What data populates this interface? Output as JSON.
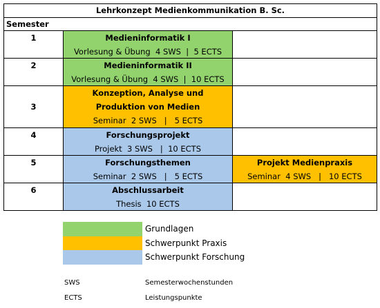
{
  "table": {
    "title": "Lehrkonzept Medienkommunikation B. Sc.",
    "header": "Semester",
    "rows": [
      {
        "semester": "1",
        "module": {
          "title": "Medieninformatik I",
          "detail": "Vorlesung & Übung  4 SWS  |  5 ECTS"
        }
      },
      {
        "semester": "2",
        "module": {
          "title": "Medieninformatik II",
          "detail": "Vorlesung & Übung  4 SWS  |  10 ECTS"
        }
      },
      {
        "semester": "3",
        "module": {
          "title": "Konzeption, Analyse und Produktion von Medien",
          "detail": "Seminar  2 SWS   |   5 ECTS"
        }
      },
      {
        "semester": "4",
        "module": {
          "title": "Forschungsprojekt",
          "detail": "Projekt  3 SWS   |  10 ECTS"
        }
      },
      {
        "semester": "5",
        "module": {
          "title": "Forschungsthemen",
          "detail": "Seminar  2 SWS   |   5 ECTS"
        },
        "extra": {
          "title": "Projekt Medienpraxis",
          "detail": "Seminar  4 SWS   |   10 ECTS"
        }
      },
      {
        "semester": "6",
        "module": {
          "title": "Abschlussarbeit",
          "detail": "Thesis  10 ECTS"
        }
      }
    ]
  },
  "legend": [
    "Grundlagen",
    "Schwerpunkt Praxis",
    "Schwerpunkt Forschung"
  ],
  "abbreviations": [
    [
      "SWS",
      "Semesterwochenstunden"
    ],
    [
      "ECTS",
      "Leistungspunkte"
    ]
  ]
}
